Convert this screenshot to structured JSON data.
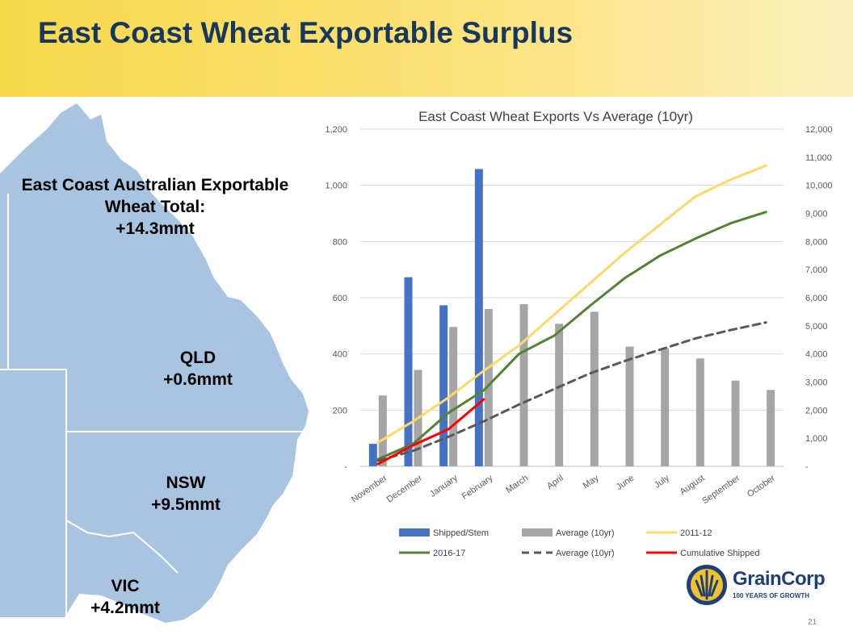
{
  "header": {
    "title": "East Coast Wheat Exportable Surplus"
  },
  "map": {
    "total_line1": "East Coast Australian Exportable",
    "total_line2": "Wheat Total:",
    "total_value": "+14.3mmt",
    "qld_label": "QLD",
    "qld_value": "+0.6mmt",
    "nsw_label": "NSW",
    "nsw_value": "+9.5mmt",
    "vic_label": "VIC",
    "vic_value": "+4.2mmt",
    "map_color": "#a9c4e0"
  },
  "chart_data": {
    "type": "bar",
    "title": "East Coast Wheat Exports Vs Average (10yr)",
    "categories": [
      "November",
      "December",
      "January",
      "February",
      "March",
      "April",
      "May",
      "June",
      "July",
      "August",
      "September",
      "October"
    ],
    "ylim": [
      0,
      1200
    ],
    "y2lim": [
      0,
      12000
    ],
    "yticks": [
      "-",
      "200",
      "400",
      "600",
      "800",
      "1,000",
      "1,200"
    ],
    "y2ticks": [
      "-",
      "1,000",
      "2,000",
      "3,000",
      "4,000",
      "5,000",
      "6,000",
      "7,000",
      "8,000",
      "9,000",
      "10,000",
      "11,000",
      "12,000"
    ],
    "grid": true,
    "legend_position": "bottom",
    "bar_series": [
      {
        "name": "Shipped/Stem",
        "color": "#4472c4",
        "values": [
          80,
          673,
          573,
          1058,
          null,
          null,
          null,
          null,
          null,
          null,
          null,
          null
        ]
      },
      {
        "name": "Average (10yr)",
        "color": "#a5a5a5",
        "values": [
          252,
          343,
          496,
          560,
          577,
          507,
          550,
          426,
          420,
          384,
          305,
          272
        ]
      }
    ],
    "line_series": [
      {
        "name": "2011-12",
        "color": "#ffd966",
        "dash": "solid",
        "axis": "secondary",
        "values": [
          850,
          1600,
          2450,
          3400,
          4300,
          5400,
          6500,
          7600,
          8600,
          9600,
          10200,
          10700
        ]
      },
      {
        "name": "2016-17",
        "color": "#548235",
        "dash": "solid",
        "axis": "secondary",
        "values": [
          250,
          800,
          1900,
          2700,
          4000,
          4650,
          5700,
          6700,
          7500,
          8100,
          8650,
          9050
        ]
      },
      {
        "name": "Average (10yr)",
        "color": "#595959",
        "dash": "dashed",
        "axis": "secondary",
        "values": [
          200,
          550,
          1050,
          1600,
          2200,
          2750,
          3300,
          3750,
          4150,
          4550,
          4850,
          5120
        ]
      },
      {
        "name": "Cumulative Shipped",
        "color": "#ff0000",
        "dash": "solid",
        "axis": "secondary",
        "values": [
          80,
          750,
          1320,
          2380,
          null,
          null,
          null,
          null,
          null,
          null,
          null,
          null
        ]
      }
    ]
  },
  "logo": {
    "name": "GrainCorp",
    "tagline": "100 YEARS OF GROWTH",
    "color": "#1f3f77",
    "accent": "#f2c12e"
  },
  "page_number": "21"
}
